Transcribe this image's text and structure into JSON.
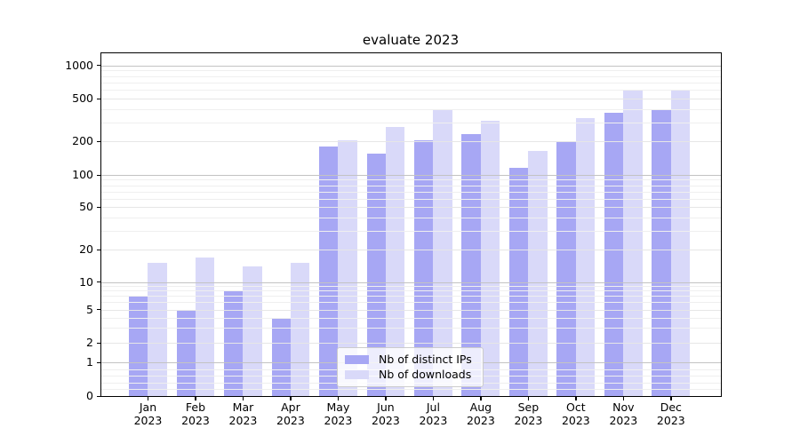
{
  "title": "evaluate 2023",
  "colors": {
    "distinct_ips": "#a7a7f4",
    "downloads": "#d9d9f9",
    "grid_decade": "#c3c3c3",
    "grid_labeled": "#e6e6e6",
    "grid_minor": "#efefef",
    "axis": "#000000",
    "background": "#ffffff"
  },
  "chart_data": {
    "type": "bar",
    "title": "evaluate 2023",
    "categories": [
      {
        "month": "Jan",
        "year": "2023"
      },
      {
        "month": "Feb",
        "year": "2023"
      },
      {
        "month": "Mar",
        "year": "2023"
      },
      {
        "month": "Apr",
        "year": "2023"
      },
      {
        "month": "May",
        "year": "2023"
      },
      {
        "month": "Jun",
        "year": "2023"
      },
      {
        "month": "Jul",
        "year": "2023"
      },
      {
        "month": "Aug",
        "year": "2023"
      },
      {
        "month": "Sep",
        "year": "2023"
      },
      {
        "month": "Oct",
        "year": "2023"
      },
      {
        "month": "Nov",
        "year": "2023"
      },
      {
        "month": "Dec",
        "year": "2023"
      }
    ],
    "series": [
      {
        "name": "Nb of distinct IPs",
        "values": [
          7,
          5,
          8,
          4,
          180,
          155,
          205,
          235,
          115,
          195,
          365,
          400
        ]
      },
      {
        "name": "Nb of downloads",
        "values": [
          15,
          17,
          14,
          15,
          205,
          270,
          390,
          310,
          165,
          330,
          605,
          590
        ]
      }
    ],
    "yscale": "symlog",
    "yticks": [
      0,
      1,
      2,
      5,
      10,
      20,
      50,
      100,
      200,
      500,
      1000
    ],
    "ylim": [
      0,
      1300
    ],
    "xlabel": "",
    "ylabel": "",
    "grid": true,
    "legend_position": "lower center"
  }
}
